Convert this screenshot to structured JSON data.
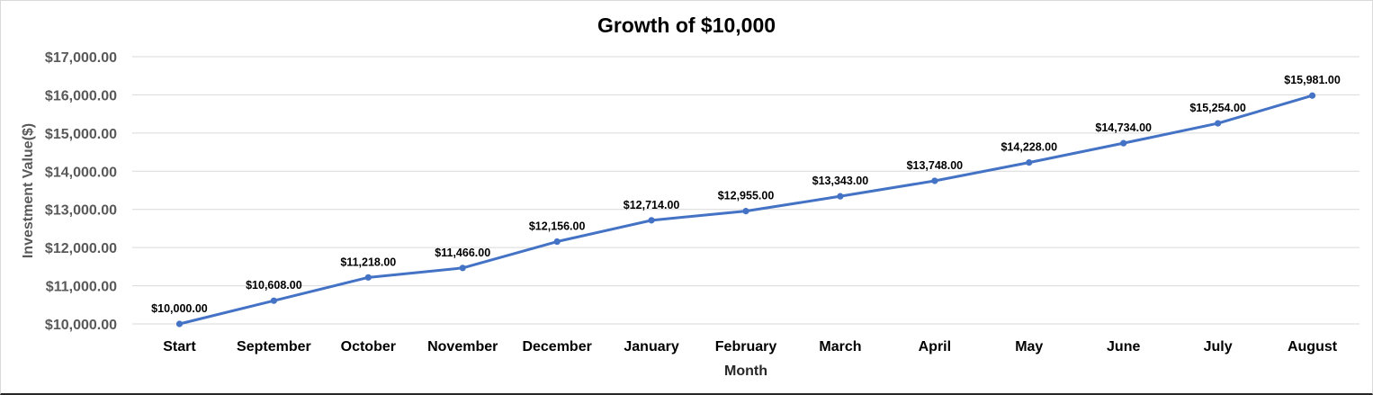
{
  "chart_data": {
    "type": "line",
    "title": "Growth of $10,000",
    "xlabel": "Month",
    "ylabel": "Investment Value($)",
    "categories": [
      "Start",
      "September",
      "October",
      "November",
      "December",
      "January",
      "February",
      "March",
      "April",
      "May",
      "June",
      "July",
      "August"
    ],
    "series": [
      {
        "values": [
          10000,
          10608,
          11218,
          11466,
          12156,
          12714,
          12955,
          13343,
          13748,
          14228,
          14734,
          15254,
          15981
        ]
      }
    ],
    "data_labels": [
      "$10,000.00",
      "$10,608.00",
      "$11,218.00",
      "$11,466.00",
      "$12,156.00",
      "$12,714.00",
      "$12,955.00",
      "$13,343.00",
      "$13,748.00",
      "$14,228.00",
      "$14,734.00",
      "$15,254.00",
      "$15,981.00"
    ],
    "yticks": [
      10000,
      11000,
      12000,
      13000,
      14000,
      15000,
      16000,
      17000
    ],
    "ytick_labels": [
      "$10,000.00",
      "$11,000.00",
      "$12,000.00",
      "$13,000.00",
      "$14,000.00",
      "$15,000.00",
      "$16,000.00",
      "$17,000.00"
    ],
    "ylim": [
      10000,
      17000
    ],
    "grid": true,
    "legend": "none",
    "colors": {
      "line": "#4472c4",
      "grid": "#d9d9d9"
    }
  }
}
